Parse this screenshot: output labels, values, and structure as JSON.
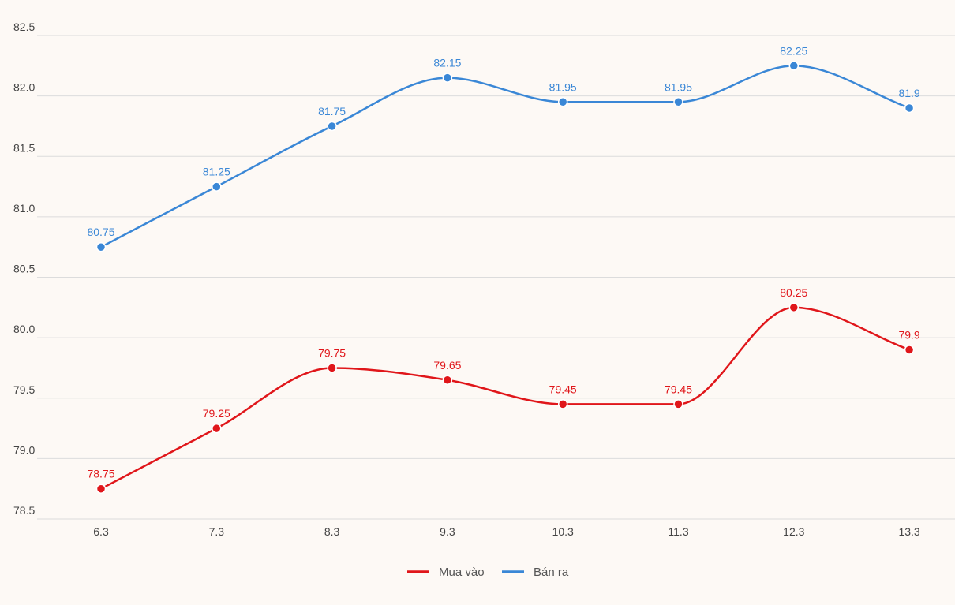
{
  "chart_data": {
    "type": "line",
    "title": "",
    "xlabel": "",
    "ylabel": "",
    "categories": [
      "6.3",
      "7.3",
      "8.3",
      "9.3",
      "10.3",
      "11.3",
      "12.3",
      "13.3"
    ],
    "ylim": [
      78.5,
      82.5
    ],
    "yticks": [
      "78.5",
      "79.0",
      "79.5",
      "80.0",
      "80.5",
      "81.0",
      "81.5",
      "82.0",
      "82.5"
    ],
    "grid": true,
    "legend_position": "bottom",
    "series": [
      {
        "name": "Mua vào",
        "color": "#e0161a",
        "values": [
          78.75,
          79.25,
          79.75,
          79.65,
          79.45,
          79.45,
          80.25,
          79.9
        ],
        "labels": [
          "78.75",
          "79.25",
          "79.75",
          "79.65",
          "79.45",
          "79.45",
          "80.25",
          "79.9"
        ]
      },
      {
        "name": "Bán ra",
        "color": "#3a87d6",
        "values": [
          80.75,
          81.25,
          81.75,
          82.15,
          81.95,
          81.95,
          82.25,
          81.9
        ],
        "labels": [
          "80.75",
          "81.25",
          "81.75",
          "82.15",
          "81.95",
          "81.95",
          "82.25",
          "81.9"
        ]
      }
    ]
  }
}
